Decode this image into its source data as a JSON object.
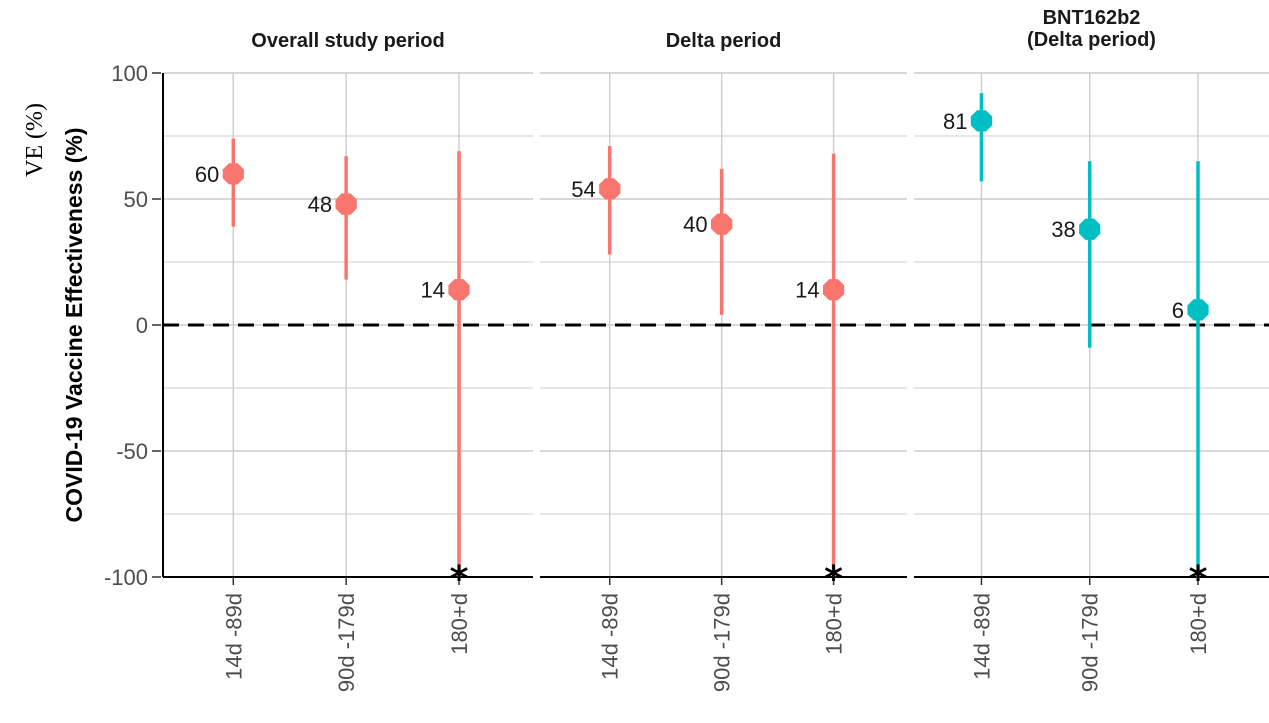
{
  "outer_label": "VE (%)",
  "chart_data": {
    "type": "scatter",
    "subtype": "point-range (estimate with confidence interval), faceted",
    "ylabel": "COVID-19 Vaccine Effectiveness (%)",
    "ylim": [
      -100,
      100
    ],
    "yticks": [
      -100,
      -50,
      0,
      50,
      100
    ],
    "grid": true,
    "reference_line": {
      "y": 0,
      "style": "dashed"
    },
    "truncation_marker": "*",
    "categories": [
      "14d -89d",
      "90d -179d",
      "180+d"
    ],
    "colors": {
      "mRNA-1273": "#f8766d",
      "BNT162b2": "#00bfc4"
    },
    "panels": [
      {
        "title": "Overall study period",
        "color": "#f8766d",
        "points": [
          {
            "category": "14d -89d",
            "ve": 60,
            "lower": 39,
            "upper": 74,
            "label": "60",
            "truncated": false
          },
          {
            "category": "90d -179d",
            "ve": 48,
            "lower": 18,
            "upper": 67,
            "label": "48",
            "truncated": false
          },
          {
            "category": "180+d",
            "ve": 14,
            "lower": -100,
            "upper": 69,
            "label": "14",
            "truncated": true
          }
        ]
      },
      {
        "title": "Delta period",
        "color": "#f8766d",
        "points": [
          {
            "category": "14d -89d",
            "ve": 54,
            "lower": 28,
            "upper": 71,
            "label": "54",
            "truncated": false
          },
          {
            "category": "90d -179d",
            "ve": 40,
            "lower": 4,
            "upper": 62,
            "label": "40",
            "truncated": false
          },
          {
            "category": "180+d",
            "ve": 14,
            "lower": -100,
            "upper": 68,
            "label": "14",
            "truncated": true
          }
        ]
      },
      {
        "title": "BNT162b2\n(Delta period)",
        "color": "#00bfc4",
        "points": [
          {
            "category": "14d -89d",
            "ve": 81,
            "lower": 57,
            "upper": 92,
            "label": "81",
            "truncated": false
          },
          {
            "category": "90d -179d",
            "ve": 38,
            "lower": -9,
            "upper": 65,
            "label": "38",
            "truncated": false
          },
          {
            "category": "180+d",
            "ve": 6,
            "lower": -100,
            "upper": 65,
            "label": "6",
            "truncated": true
          }
        ]
      }
    ]
  }
}
